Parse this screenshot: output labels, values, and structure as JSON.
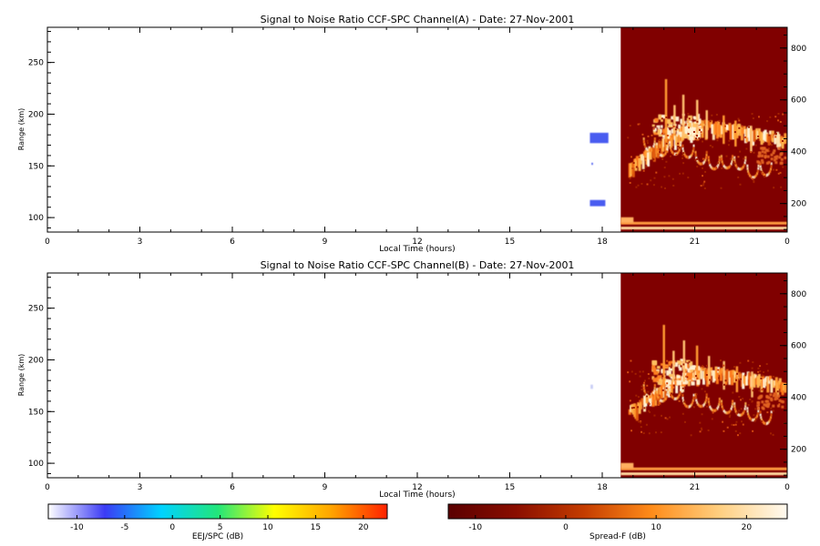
{
  "chart_data": [
    {
      "type": "heatmap",
      "title": "Signal to Noise Ratio CCF-SPC Channel(A) - Date: 27-Nov-2001",
      "xlabel": "Local Time (hours)",
      "ylabel": "Range (km)",
      "xlim": [
        0,
        24
      ],
      "xticks": [
        "0",
        "3",
        "6",
        "9",
        "12",
        "15",
        "18",
        "21",
        "0"
      ],
      "ylim_left": [
        86,
        284
      ],
      "yticks_left": [
        100,
        150,
        200,
        250
      ],
      "ylim_right": [
        90,
        880
      ],
      "yticks_right": [
        200,
        400,
        600,
        800
      ],
      "right_panel_start_hour": 18.6,
      "ejspc_echoes": [
        {
          "time": [
            17.6,
            18.2
          ],
          "range": [
            172,
            182
          ]
        },
        {
          "time": [
            17.65,
            17.7
          ],
          "range": [
            151,
            153
          ]
        },
        {
          "time": [
            17.6,
            18.1
          ],
          "range": [
            111,
            117
          ]
        }
      ],
      "spread_f": [
        {
          "time": [
            18.8,
            23.9
          ],
          "range_km": [
            330,
            640
          ]
        },
        {
          "time": [
            18.6,
            24.0
          ],
          "range_km": [
            100,
            140
          ]
        }
      ]
    },
    {
      "type": "heatmap",
      "title": "Signal to Noise Ratio CCF-SPC Channel(B) - Date: 27-Nov-2001",
      "xlabel": "Local Time (hours)",
      "ylabel": "Range (km)",
      "xlim": [
        0,
        24
      ],
      "xticks": [
        "0",
        "3",
        "6",
        "9",
        "12",
        "15",
        "18",
        "21",
        "0"
      ],
      "ylim_left": [
        86,
        284
      ],
      "yticks_left": [
        100,
        150,
        200,
        250
      ],
      "ylim_right": [
        90,
        880
      ],
      "yticks_right": [
        200,
        400,
        600,
        800
      ],
      "right_panel_start_hour": 18.6,
      "ejspc_echoes": [
        {
          "time": [
            17.62,
            17.7
          ],
          "range": [
            172,
            176
          ]
        }
      ],
      "spread_f": [
        {
          "time": [
            18.8,
            23.9
          ],
          "range_km": [
            330,
            640
          ]
        },
        {
          "time": [
            18.6,
            24.0
          ],
          "range_km": [
            100,
            140
          ]
        }
      ]
    }
  ],
  "colorbars": [
    {
      "label": "EEJ/SPC (dB)",
      "range": [
        -13,
        22.5
      ],
      "ticks": [
        "-10",
        "-5",
        "0",
        "5",
        "10",
        "15",
        "20"
      ],
      "tick_values": [
        -10,
        -5,
        0,
        5,
        10,
        15,
        20
      ],
      "colors": [
        "#ffffff",
        "#3b3bf5",
        "#00d2ff",
        "#22e67a",
        "#ffff00",
        "#ffa500",
        "#ff2200"
      ]
    },
    {
      "label": "Spread-F (dB)",
      "range": [
        -13,
        24.5
      ],
      "ticks": [
        "-10",
        "0",
        "10",
        "20"
      ],
      "tick_values": [
        -10,
        0,
        10,
        20
      ],
      "colors": [
        "#5a0000",
        "#8a0e00",
        "#c43c00",
        "#ff8c1a",
        "#ffcf80",
        "#fffaf0"
      ]
    }
  ],
  "colors": {
    "spread_f_background": "#800000",
    "echo": "#4a5cf0"
  }
}
